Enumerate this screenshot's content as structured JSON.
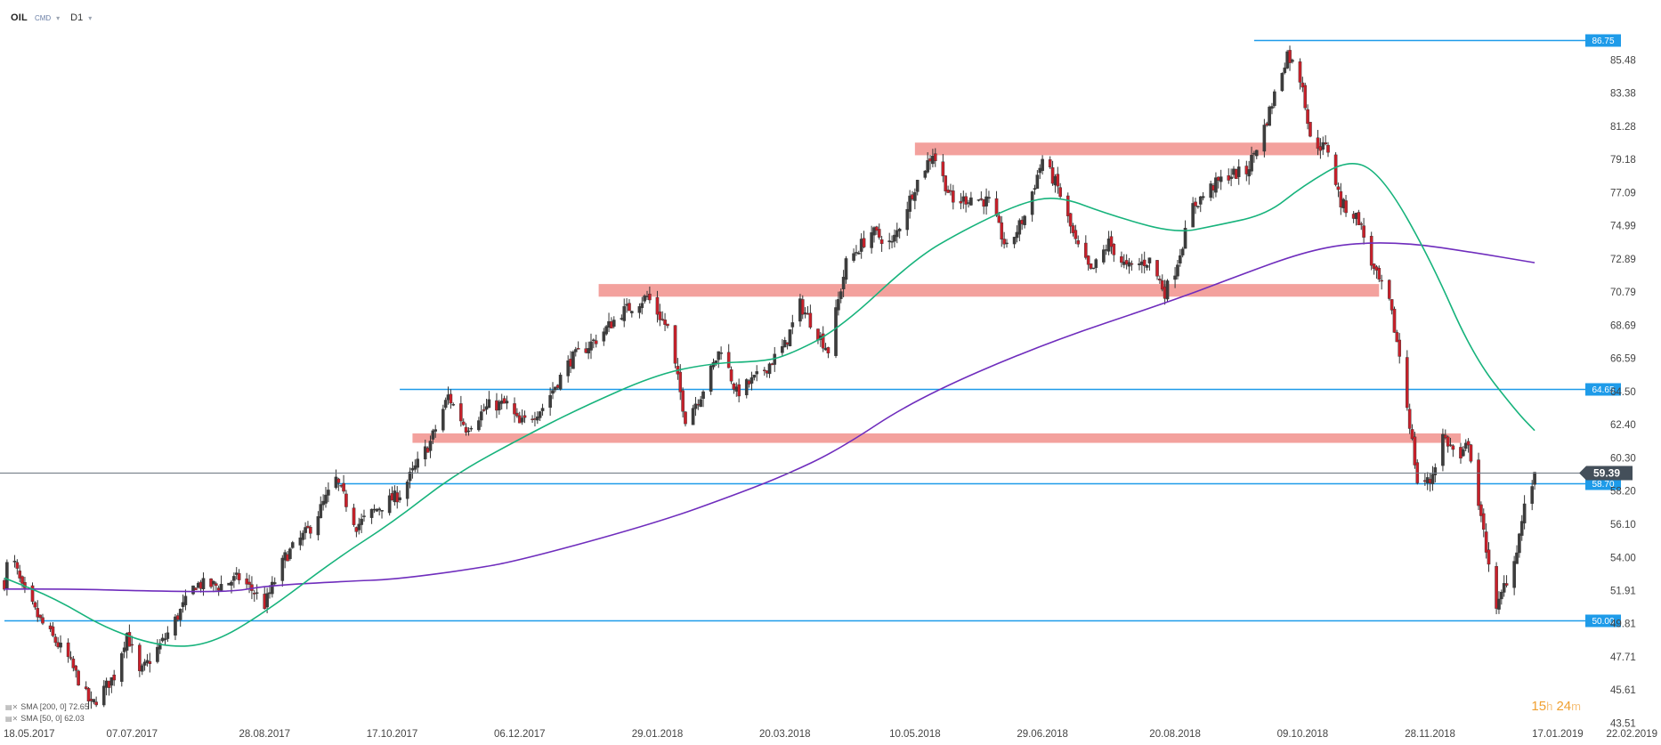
{
  "header": {
    "symbol": "OIL",
    "exchange": "CMD",
    "timeframe": "D1"
  },
  "legend": {
    "sma200": "SMA [200, 0] 72.65",
    "sma50": "SMA [50, 0] 62.03"
  },
  "countdown": {
    "hours": "15",
    "h": "h",
    "minutes": "24",
    "m": "m"
  },
  "chart_data": {
    "type": "candlestick",
    "instrument": "OIL",
    "timeframe": "D1",
    "xlim": [
      "18.05.2017",
      "22.02.2019"
    ],
    "ylim": [
      43.51,
      87.5
    ],
    "y_ticks": [
      "85.48",
      "83.38",
      "81.28",
      "79.18",
      "77.09",
      "74.99",
      "72.89",
      "70.79",
      "68.69",
      "66.59",
      "64.50",
      "62.40",
      "60.30",
      "58.20",
      "56.10",
      "54.00",
      "51.91",
      "49.81",
      "47.71",
      "45.61",
      "43.51"
    ],
    "x_ticks": [
      "18.05.2017",
      "07.07.2017",
      "28.08.2017",
      "17.10.2017",
      "06.12.2017",
      "29.01.2018",
      "20.03.2018",
      "10.05.2018",
      "29.06.2018",
      "20.08.2018",
      "09.10.2018",
      "28.11.2018",
      "17.01.2019",
      "22.02.2019"
    ],
    "current_price": {
      "value": 59.39,
      "label": "59.39"
    },
    "price_path": [
      [
        "18.05.2017",
        52.4
      ],
      [
        "20.05.2017",
        54.6
      ],
      [
        "25.05.2017",
        52.0
      ],
      [
        "01.06.2017",
        50.0
      ],
      [
        "12.06.2017",
        47.6
      ],
      [
        "21.06.2017",
        44.6
      ],
      [
        "30.06.2017",
        46.5
      ],
      [
        "05.07.2017",
        49.2
      ],
      [
        "10.07.2017",
        46.6
      ],
      [
        "20.07.2017",
        48.9
      ],
      [
        "01.08.2017",
        52.3
      ],
      [
        "10.08.2017",
        52.2
      ],
      [
        "18.08.2017",
        52.7
      ],
      [
        "24.08.2017",
        51.8
      ],
      [
        "28.08.2017",
        51.0
      ],
      [
        "05.09.2017",
        54.0
      ],
      [
        "15.09.2017",
        55.9
      ],
      [
        "25.09.2017",
        58.9
      ],
      [
        "03.10.2017",
        56.0
      ],
      [
        "12.10.2017",
        57.2
      ],
      [
        "20.10.2017",
        58.0
      ],
      [
        "01.11.2017",
        61.3
      ],
      [
        "08.11.2017",
        64.2
      ],
      [
        "15.11.2017",
        62.2
      ],
      [
        "24.11.2017",
        63.6
      ],
      [
        "01.12.2017",
        63.7
      ],
      [
        "06.12.2017",
        62.4
      ],
      [
        "15.12.2017",
        63.5
      ],
      [
        "26.12.2017",
        66.5
      ],
      [
        "05.01.2018",
        67.8
      ],
      [
        "15.01.2018",
        69.5
      ],
      [
        "25.01.2018",
        70.5
      ],
      [
        "02.02.2018",
        68.5
      ],
      [
        "09.02.2018",
        62.8
      ],
      [
        "15.02.2018",
        64.3
      ],
      [
        "23.02.2018",
        67.3
      ],
      [
        "01.03.2018",
        64.4
      ],
      [
        "10.03.2018",
        65.5
      ],
      [
        "20.03.2018",
        67.4
      ],
      [
        "26.03.2018",
        70.0
      ],
      [
        "06.04.2018",
        67.1
      ],
      [
        "13.04.2018",
        72.6
      ],
      [
        "23.04.2018",
        74.6
      ],
      [
        "01.05.2018",
        73.8
      ],
      [
        "10.05.2018",
        77.5
      ],
      [
        "17.05.2018",
        79.6
      ],
      [
        "25.05.2018",
        76.4
      ],
      [
        "01.06.2018",
        76.8
      ],
      [
        "08.06.2018",
        76.5
      ],
      [
        "15.06.2018",
        73.5
      ],
      [
        "22.06.2018",
        75.6
      ],
      [
        "29.06.2018",
        79.2
      ],
      [
        "05.07.2018",
        77.4
      ],
      [
        "12.07.2018",
        73.9
      ],
      [
        "18.07.2018",
        72.0
      ],
      [
        "25.07.2018",
        73.9
      ],
      [
        "01.08.2018",
        72.3
      ],
      [
        "10.08.2018",
        72.8
      ],
      [
        "16.08.2018",
        70.8
      ],
      [
        "20.08.2018",
        72.2
      ],
      [
        "27.08.2018",
        76.2
      ],
      [
        "03.09.2018",
        77.4
      ],
      [
        "10.09.2018",
        78.2
      ],
      [
        "17.09.2018",
        78.4
      ],
      [
        "24.09.2018",
        81.2
      ],
      [
        "03.10.2018",
        85.9
      ],
      [
        "09.10.2018",
        84.0
      ],
      [
        "12.10.2018",
        80.4
      ],
      [
        "19.10.2018",
        79.8
      ],
      [
        "24.10.2018",
        76.4
      ],
      [
        "31.10.2018",
        75.4
      ],
      [
        "06.11.2018",
        72.1
      ],
      [
        "12.11.2018",
        70.1
      ],
      [
        "16.11.2018",
        66.8
      ],
      [
        "20.11.2018",
        62.5
      ],
      [
        "23.11.2018",
        58.8
      ],
      [
        "28.11.2018",
        58.8
      ],
      [
        "03.12.2018",
        61.7
      ],
      [
        "10.12.2018",
        60.1
      ],
      [
        "13.12.2018",
        61.4
      ],
      [
        "18.12.2018",
        56.3
      ],
      [
        "21.12.2018",
        53.8
      ],
      [
        "24.12.2018",
        50.5
      ],
      [
        "27.12.2018",
        52.2
      ],
      [
        "31.12.2018",
        53.8
      ],
      [
        "04.01.2019",
        57.1
      ],
      [
        "07.01.2019",
        58.7
      ],
      [
        "08.01.2019",
        59.39
      ]
    ],
    "series": [
      {
        "name": "SMA [200, 0] 72.65",
        "color": "#6f2dbd",
        "points": [
          [
            "18.05.2017",
            52.0
          ],
          [
            "15.06.2017",
            52.0
          ],
          [
            "07.07.2017",
            51.9
          ],
          [
            "15.08.2017",
            51.8
          ],
          [
            "28.08.2017",
            52.2
          ],
          [
            "30.09.2017",
            52.5
          ],
          [
            "17.10.2017",
            52.6
          ],
          [
            "15.11.2017",
            53.2
          ],
          [
            "06.12.2017",
            53.8
          ],
          [
            "29.01.2018",
            56.2
          ],
          [
            "01.03.2018",
            58.0
          ],
          [
            "20.03.2018",
            59.2
          ],
          [
            "10.04.2018",
            60.8
          ],
          [
            "10.05.2018",
            64.0
          ],
          [
            "29.06.2018",
            67.5
          ],
          [
            "20.08.2018",
            70.3
          ],
          [
            "15.09.2018",
            71.9
          ],
          [
            "09.10.2018",
            73.3
          ],
          [
            "28.10.2018",
            73.9
          ],
          [
            "20.11.2018",
            73.9
          ],
          [
            "15.12.2018",
            73.3
          ],
          [
            "08.01.2019",
            72.65
          ]
        ]
      },
      {
        "name": "SMA [50, 0] 62.03",
        "color": "#17b37c",
        "points": [
          [
            "18.05.2017",
            52.7
          ],
          [
            "07.06.2017",
            51.4
          ],
          [
            "28.06.2017",
            49.4
          ],
          [
            "20.07.2017",
            48.3
          ],
          [
            "07.08.2017",
            48.5
          ],
          [
            "28.08.2017",
            50.5
          ],
          [
            "25.09.2017",
            53.9
          ],
          [
            "17.10.2017",
            56.2
          ],
          [
            "10.11.2017",
            59.2
          ],
          [
            "06.12.2017",
            61.5
          ],
          [
            "29.12.2017",
            63.4
          ],
          [
            "29.01.2018",
            65.6
          ],
          [
            "20.02.2018",
            66.3
          ],
          [
            "10.03.2018",
            66.4
          ],
          [
            "20.03.2018",
            66.7
          ],
          [
            "10.04.2018",
            68.4
          ],
          [
            "10.05.2018",
            72.9
          ],
          [
            "29.05.2018",
            74.7
          ],
          [
            "20.06.2018",
            76.4
          ],
          [
            "05.07.2018",
            76.9
          ],
          [
            "25.07.2018",
            75.7
          ],
          [
            "20.08.2018",
            74.5
          ],
          [
            "05.09.2018",
            75.0
          ],
          [
            "25.09.2018",
            75.7
          ],
          [
            "09.10.2018",
            77.5
          ],
          [
            "28.10.2018",
            79.3
          ],
          [
            "10.11.2018",
            78.0
          ],
          [
            "28.11.2018",
            72.9
          ],
          [
            "15.12.2018",
            66.7
          ],
          [
            "01.01.2019",
            63.2
          ],
          [
            "08.01.2019",
            62.03
          ]
        ]
      }
    ],
    "horizontal_lines": [
      {
        "value": 86.75,
        "label": "86.75",
        "from": "20.09.2018",
        "color": "#1e9be9"
      },
      {
        "value": 64.65,
        "label": "64.65",
        "from": "20.10.2017",
        "color": "#1e9be9"
      },
      {
        "value": 58.7,
        "label": "58.70",
        "from": "25.09.2017",
        "color": "#1e9be9"
      },
      {
        "value": 50.0,
        "label": "50.00",
        "from": "18.05.2017",
        "color": "#1e9be9"
      }
    ],
    "zones": [
      {
        "y_low": 79.45,
        "y_high": 80.25,
        "from": "10.05.2018",
        "to": "16.10.2018",
        "color": "#f08a84"
      },
      {
        "y_low": 70.5,
        "y_high": 71.3,
        "from": "06.01.2018",
        "to": "08.11.2018",
        "color": "#f08a84"
      },
      {
        "y_low": 61.25,
        "y_high": 61.85,
        "from": "25.10.2017",
        "to": "10.12.2018",
        "color": "#f08a84"
      }
    ],
    "colors": {
      "up": "#3d3d3d",
      "down": "#c8202a",
      "line_tag": "#1e9be9",
      "price_tag": "#444f5a"
    },
    "grid": false
  }
}
